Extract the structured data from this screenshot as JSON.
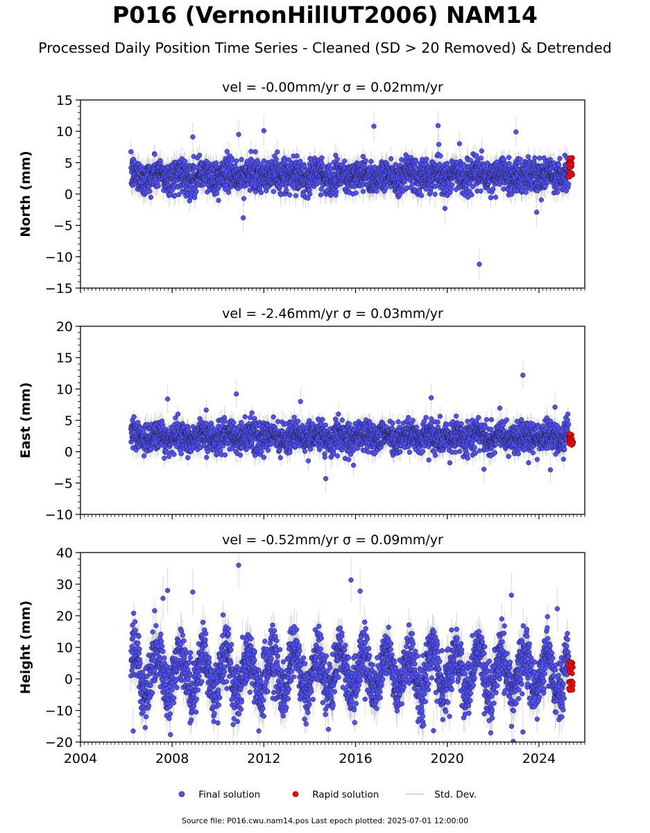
{
  "title": "P016 (VernonHillUT2006) NAM14",
  "subtitle": "Processed Daily Position Time Series - Cleaned (SD > 20 Removed) & Detrended",
  "footer": "Source file: P016.cwu.nam14.pos  Last epoch plotted: 2025-07-01 12:00:00",
  "legend": {
    "final": "Final solution",
    "rapid": "Rapid solution",
    "std": "Std. Dev."
  },
  "colors": {
    "final": "#5050ff",
    "rapid": "#ff0000",
    "std": "#c8c8c8"
  },
  "chart_data": [
    {
      "type": "scatter",
      "title": "vel = -0.00mm/yr   σ = 0.02mm/yr",
      "ylabel": "North (mm)",
      "xlim": [
        2004,
        2026
      ],
      "ylim": [
        -15,
        15
      ],
      "yticks": [
        -15,
        -10,
        -5,
        0,
        5,
        10,
        15
      ],
      "xticks": [
        2004,
        2008,
        2012,
        2016,
        2020,
        2024
      ],
      "show_xticklabels": false,
      "data_start": 2006.2,
      "rapid_start": 2025.3,
      "data_end": 2025.5,
      "baseline": 2.9,
      "noise_sd": 1.3,
      "seasonal_amp": 0.4,
      "err_typical": 1.5,
      "outliers": [
        [
          2021.4,
          -11.2
        ],
        [
          2010.9,
          9.5
        ],
        [
          2012.0,
          10.1
        ],
        [
          2016.8,
          10.8
        ],
        [
          2019.6,
          10.9
        ],
        [
          2023.0,
          9.9
        ],
        [
          2011.1,
          -3.8
        ],
        [
          2023.9,
          -2.9
        ],
        [
          2019.9,
          -2.3
        ],
        [
          2008.9,
          9.1
        ]
      ],
      "rapid_range": [
        2.7,
        5.8
      ]
    },
    {
      "type": "scatter",
      "title": "vel = -2.46mm/yr   σ = 0.03mm/yr",
      "ylabel": "East (mm)",
      "xlim": [
        2004,
        2026
      ],
      "ylim": [
        -10,
        20
      ],
      "yticks": [
        -10,
        -5,
        0,
        5,
        10,
        15,
        20
      ],
      "xticks": [
        2004,
        2008,
        2012,
        2016,
        2020,
        2024
      ],
      "show_xticklabels": false,
      "data_start": 2006.2,
      "rapid_start": 2025.3,
      "data_end": 2025.5,
      "baseline": 2.4,
      "noise_sd": 1.2,
      "seasonal_amp": 0.5,
      "err_typical": 1.4,
      "outliers": [
        [
          2023.3,
          12.2
        ],
        [
          2014.7,
          -4.3
        ],
        [
          2021.6,
          -2.8
        ],
        [
          2024.5,
          -2.9
        ],
        [
          2010.8,
          9.2
        ],
        [
          2007.8,
          8.4
        ],
        [
          2019.3,
          8.6
        ],
        [
          2024.7,
          7.1
        ],
        [
          2013.6,
          8.0
        ]
      ],
      "rapid_range": [
        1.0,
        3.0
      ]
    },
    {
      "type": "scatter",
      "title": "vel = -0.52mm/yr   σ = 0.09mm/yr",
      "ylabel": "Height (mm)",
      "xlim": [
        2004,
        2026
      ],
      "ylim": [
        -20,
        40
      ],
      "yticks": [
        -20,
        -10,
        0,
        10,
        20,
        30,
        40
      ],
      "xticks": [
        2004,
        2008,
        2012,
        2016,
        2020,
        2024
      ],
      "xticklabels": [
        "2004",
        "2008",
        "2012",
        "2016",
        "2020",
        "2024"
      ],
      "show_xticklabels": true,
      "data_start": 2006.2,
      "rapid_start": 2025.3,
      "data_end": 2025.5,
      "baseline": 2.0,
      "noise_sd": 4.5,
      "seasonal_amp": 6.5,
      "err_typical": 4.5,
      "outliers": [
        [
          2010.9,
          36.0
        ],
        [
          2015.8,
          31.3
        ],
        [
          2007.8,
          28.0
        ],
        [
          2008.9,
          27.5
        ],
        [
          2016.2,
          27.8
        ],
        [
          2022.8,
          26.5
        ],
        [
          2006.3,
          -16.5
        ],
        [
          2023.3,
          -16.8
        ],
        [
          2019.4,
          -16.4
        ],
        [
          2024.8,
          22.2
        ],
        [
          2007.6,
          25.5
        ]
      ],
      "rapid_range": [
        -4.4,
        6.0
      ]
    }
  ]
}
